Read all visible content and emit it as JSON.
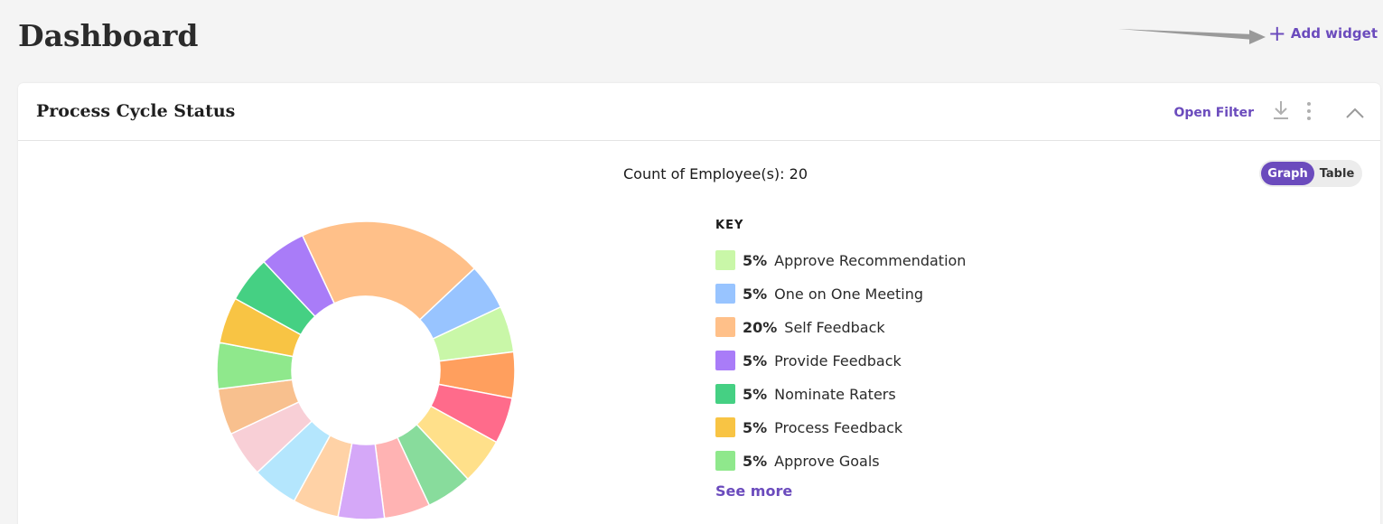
{
  "page": {
    "title": "Dashboard"
  },
  "header": {
    "add_widget_label": "Add widget",
    "add_widget_icon": "plus-icon"
  },
  "card": {
    "title": "Process Cycle Status",
    "open_filter_label": "Open Filter",
    "icons": [
      "download-icon",
      "more-vertical-icon",
      "chevron-up-icon"
    ],
    "count_label": "Count of Employee(s): 20",
    "toggle": {
      "graph_label": "Graph",
      "table_label": "Table",
      "selected": "Graph"
    },
    "legend": {
      "title": "KEY",
      "items": [
        {
          "pct": "5%",
          "label": "Approve Recommendation",
          "color": "#c9f7a8"
        },
        {
          "pct": "5%",
          "label": "One on One Meeting",
          "color": "#98c4ff"
        },
        {
          "pct": "20%",
          "label": "Self Feedback",
          "color": "#ffc089"
        },
        {
          "pct": "5%",
          "label": "Provide Feedback",
          "color": "#a97cf8"
        },
        {
          "pct": "5%",
          "label": "Nominate Raters",
          "color": "#45d083"
        },
        {
          "pct": "5%",
          "label": "Process Feedback",
          "color": "#f8c444"
        },
        {
          "pct": "5%",
          "label": "Approve Goals",
          "color": "#8fe88c"
        }
      ],
      "see_more_label": "See more"
    }
  },
  "chart_data": {
    "type": "pie",
    "donut": true,
    "slices": [
      {
        "value": 20,
        "color": "#ffc089"
      },
      {
        "value": 5,
        "color": "#98c4ff"
      },
      {
        "value": 5,
        "color": "#c9f7a8"
      },
      {
        "value": 5,
        "color": "#ff9f5e"
      },
      {
        "value": 5,
        "color": "#ff6b8b"
      },
      {
        "value": 5,
        "color": "#ffe08a"
      },
      {
        "value": 5,
        "color": "#88dc9c"
      },
      {
        "value": 5,
        "color": "#ffb3b3"
      },
      {
        "value": 5,
        "color": "#d5a8f8"
      },
      {
        "value": 5,
        "color": "#ffd2a6"
      },
      {
        "value": 5,
        "color": "#b4e6fd"
      },
      {
        "value": 5,
        "color": "#f8cfd6"
      },
      {
        "value": 5,
        "color": "#f8c08e"
      },
      {
        "value": 5,
        "color": "#8fe88c"
      },
      {
        "value": 5,
        "color": "#f8c444"
      },
      {
        "value": 5,
        "color": "#45d083"
      },
      {
        "value": 5,
        "color": "#a97cf8"
      }
    ]
  }
}
